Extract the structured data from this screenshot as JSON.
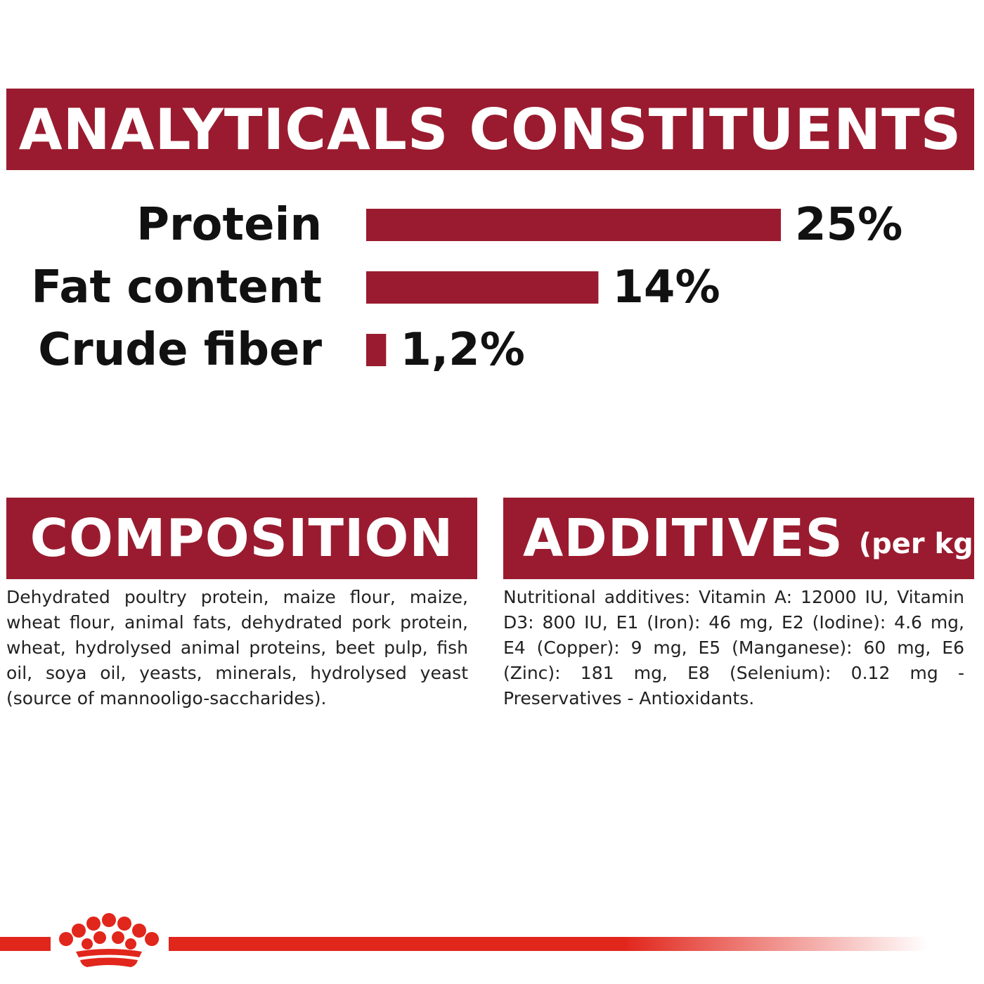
{
  "headers": {
    "analyticals": "ANALYTICALS CONSTITUENTS",
    "composition": "COMPOSITION",
    "additives": "ADDITIVES",
    "additives_sub": "(per kg)"
  },
  "chart_data": {
    "type": "bar",
    "orientation": "horizontal",
    "categories": [
      "Protein",
      "Fat content",
      "Crude fiber"
    ],
    "values": [
      25,
      14,
      1.2
    ],
    "value_labels": [
      "25%",
      "14%",
      "1,2%"
    ],
    "color": "#9a1b2f",
    "grid": false
  },
  "composition_text": "Dehydrated poultry protein, maize flour, maize, wheat flour, animal fats, dehydrated pork protein, wheat, hydrolysed animal proteins, beet pulp, fish oil, soya oil, yeasts, minerals, hydrolysed yeast (source of mannooligo-saccharides).",
  "additives_text": "Nutritional additives: Vitamin A: 12000 IU, Vitamin D3: 800 IU, E1 (Iron): 46 mg, E2 (Iodine): 4.6 mg, E4 (Copper): 9 mg, E5 (Manganese): 60 mg, E6 (Zinc): 181 mg, E8 (Selenium): 0.12 mg - Preservatives - Antioxidants.",
  "colors": {
    "banner": "#9a1b2f",
    "footer_line": "#e1261c"
  },
  "logo": {
    "icon": "crown-logo-icon"
  }
}
